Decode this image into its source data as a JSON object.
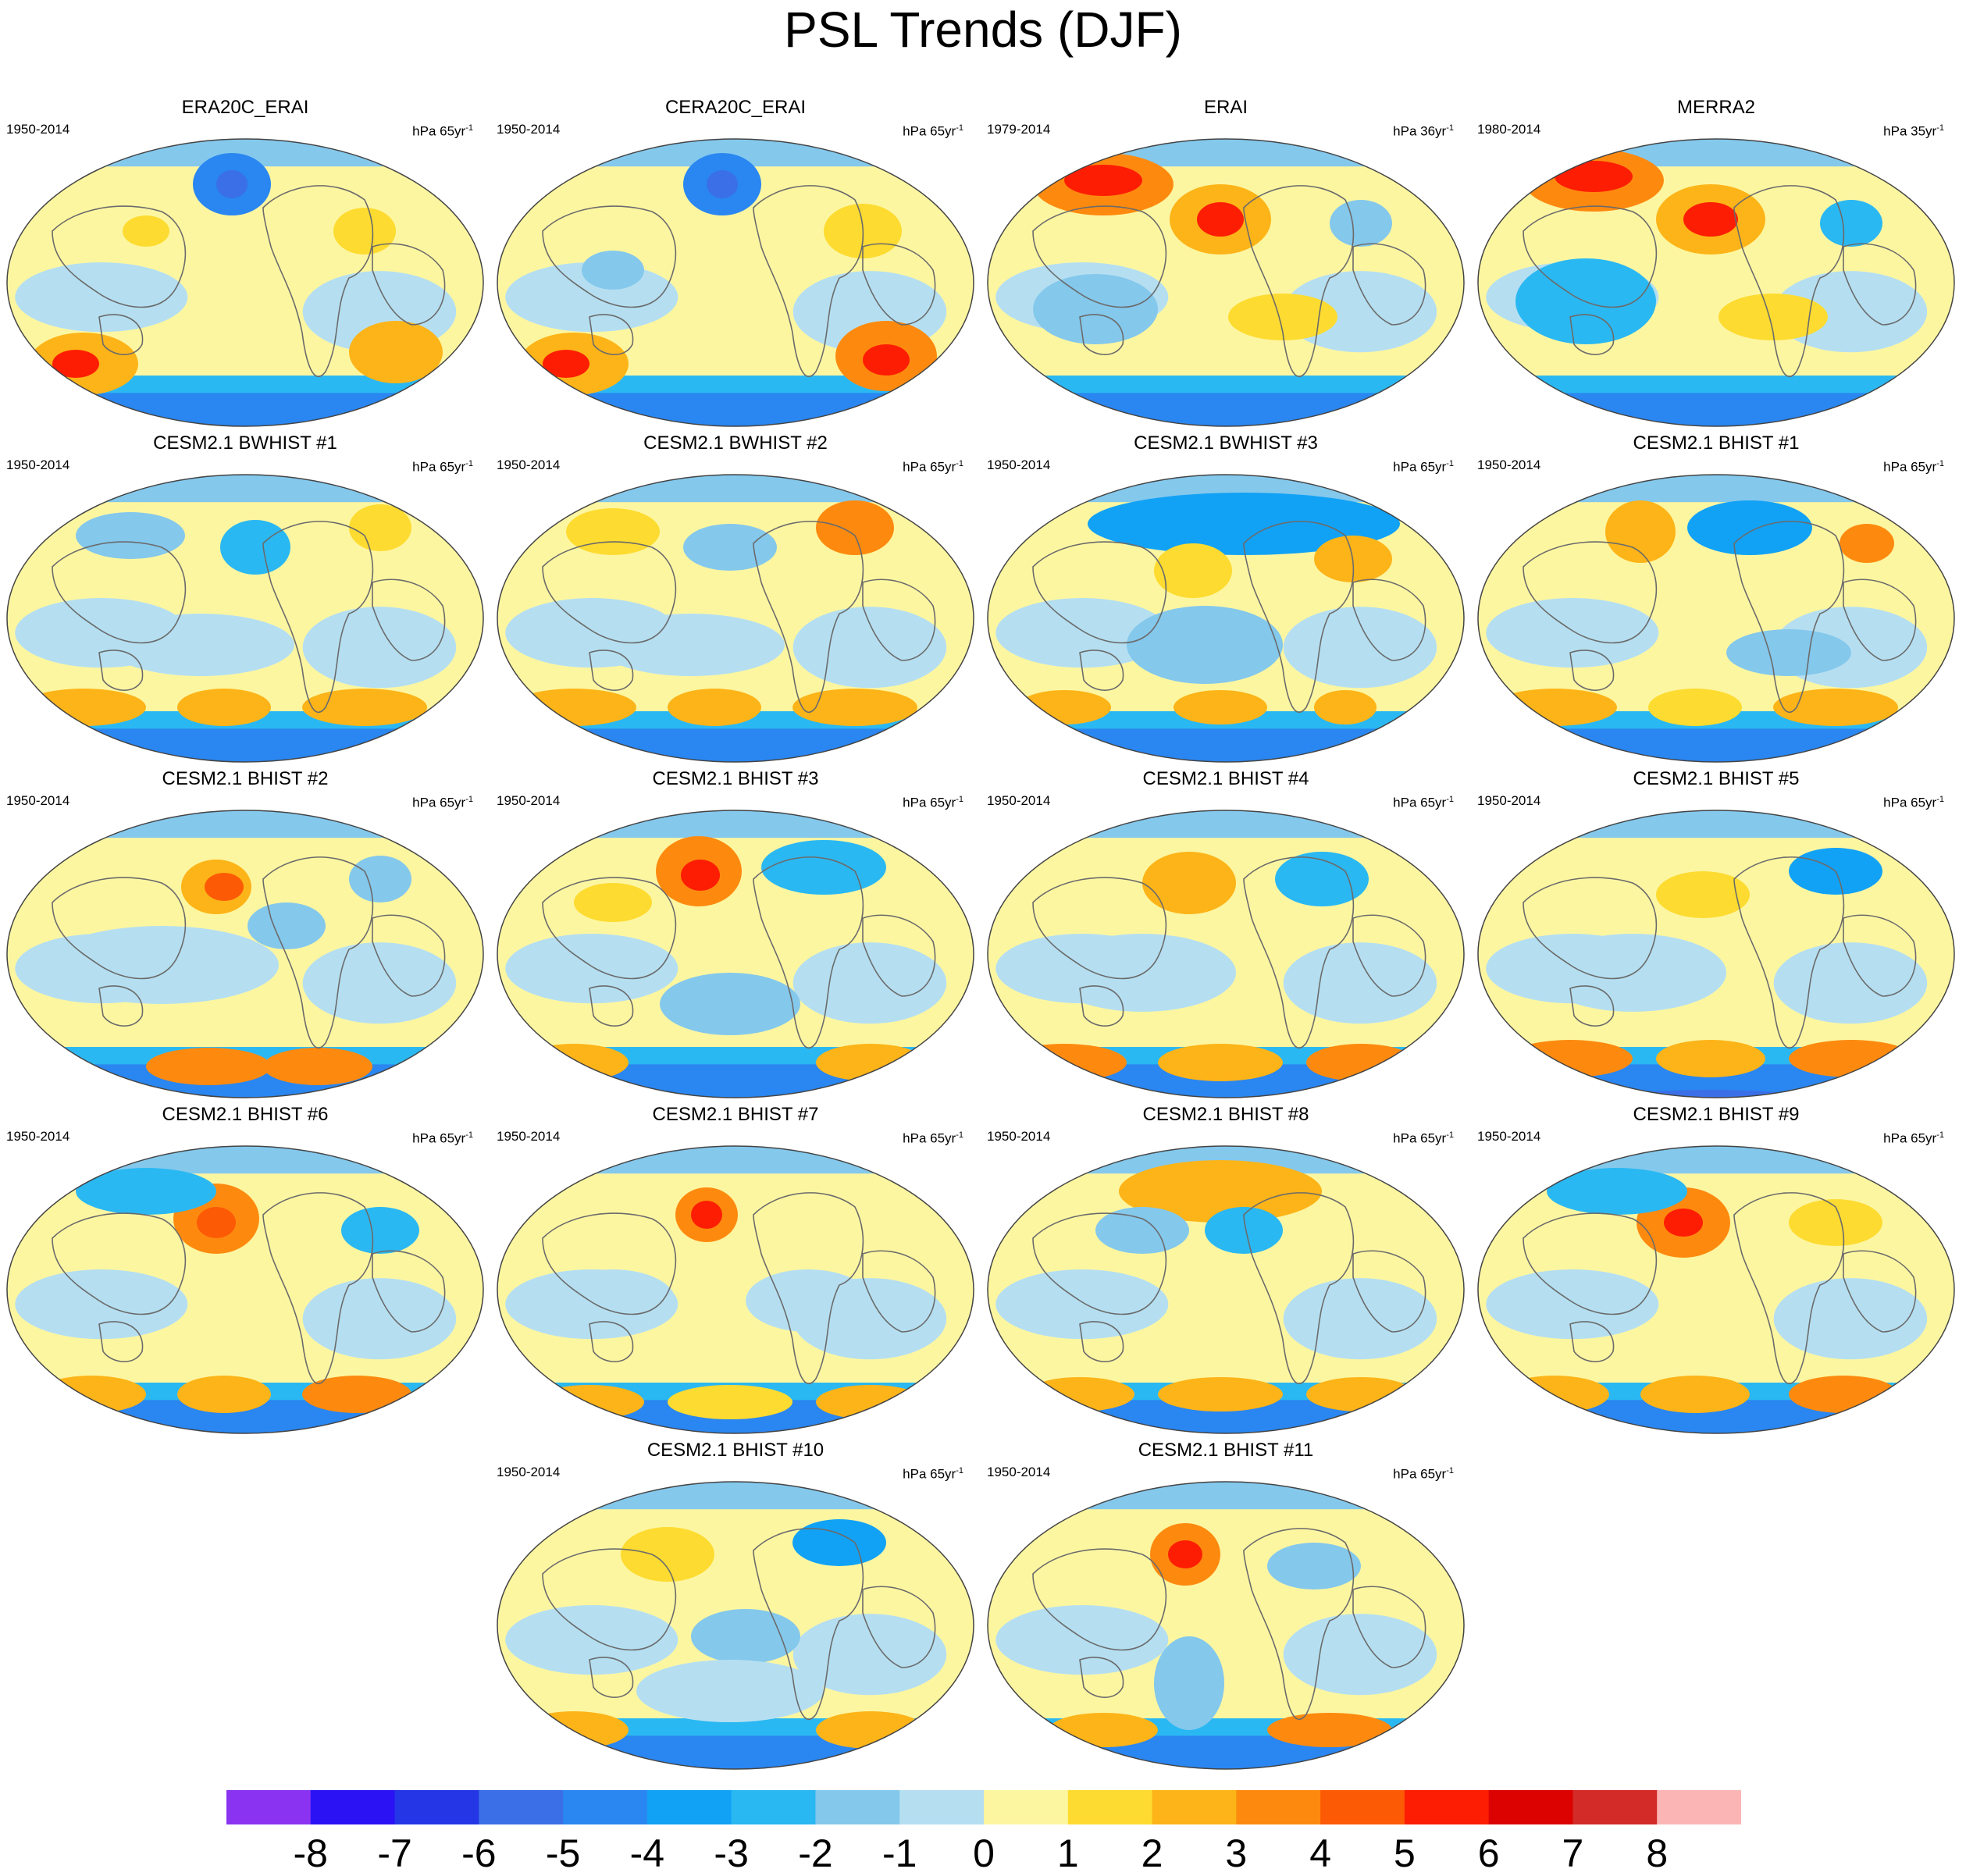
{
  "chart_data": {
    "type": "heatmap",
    "title": "PSL Trends (DJF)",
    "projection": "robinson-like, Pacific-centered",
    "colorbar": {
      "labels": [
        "-8",
        "-7",
        "-6",
        "-5",
        "-4",
        "-3",
        "-2",
        "-1",
        "0",
        "1",
        "2",
        "3",
        "4",
        "5",
        "6",
        "7",
        "8"
      ],
      "colors": [
        "#8a33f0",
        "#2b12f5",
        "#2436e6",
        "#3a6fe8",
        "#2a86f0",
        "#12a2f5",
        "#2ab8f2",
        "#84c8ec",
        "#b5dff1",
        "#fdf6a1",
        "#fddb30",
        "#fdb418",
        "#fd8a0f",
        "#fd5a06",
        "#fd1d03",
        "#dc0202",
        "#d22b28",
        "#fcb5b5"
      ]
    },
    "panels": [
      {
        "title": "ERA20C_ERAI",
        "period": "1950-2014",
        "units": "hPa 65yr",
        "exp": "-1"
      },
      {
        "title": "CERA20C_ERAI",
        "period": "1950-2014",
        "units": "hPa 65yr",
        "exp": "-1"
      },
      {
        "title": "ERAI",
        "period": "1979-2014",
        "units": "hPa 36yr",
        "exp": "-1"
      },
      {
        "title": "MERRA2",
        "period": "1980-2014",
        "units": "hPa 35yr",
        "exp": "-1"
      },
      {
        "title": "CESM2.1 BWHIST #1",
        "period": "1950-2014",
        "units": "hPa 65yr",
        "exp": "-1"
      },
      {
        "title": "CESM2.1 BWHIST #2",
        "period": "1950-2014",
        "units": "hPa 65yr",
        "exp": "-1"
      },
      {
        "title": "CESM2.1 BWHIST #3",
        "period": "1950-2014",
        "units": "hPa 65yr",
        "exp": "-1"
      },
      {
        "title": "CESM2.1 BHIST #1",
        "period": "1950-2014",
        "units": "hPa 65yr",
        "exp": "-1"
      },
      {
        "title": "CESM2.1 BHIST #2",
        "period": "1950-2014",
        "units": "hPa 65yr",
        "exp": "-1"
      },
      {
        "title": "CESM2.1 BHIST #3",
        "period": "1950-2014",
        "units": "hPa 65yr",
        "exp": "-1"
      },
      {
        "title": "CESM2.1 BHIST #4",
        "period": "1950-2014",
        "units": "hPa 65yr",
        "exp": "-1"
      },
      {
        "title": "CESM2.1 BHIST #5",
        "period": "1950-2014",
        "units": "hPa 65yr",
        "exp": "-1"
      },
      {
        "title": "CESM2.1 BHIST #6",
        "period": "1950-2014",
        "units": "hPa 65yr",
        "exp": "-1"
      },
      {
        "title": "CESM2.1 BHIST #7",
        "period": "1950-2014",
        "units": "hPa 65yr",
        "exp": "-1"
      },
      {
        "title": "CESM2.1 BHIST #8",
        "period": "1950-2014",
        "units": "hPa 65yr",
        "exp": "-1"
      },
      {
        "title": "CESM2.1 BHIST #9",
        "period": "1950-2014",
        "units": "hPa 65yr",
        "exp": "-1"
      },
      {
        "title": "CESM2.1 BHIST #10",
        "period": "1950-2014",
        "units": "hPa 65yr",
        "exp": "-1"
      },
      {
        "title": "CESM2.1 BHIST #11",
        "period": "1950-2014",
        "units": "hPa 65yr",
        "exp": "-1"
      }
    ]
  }
}
